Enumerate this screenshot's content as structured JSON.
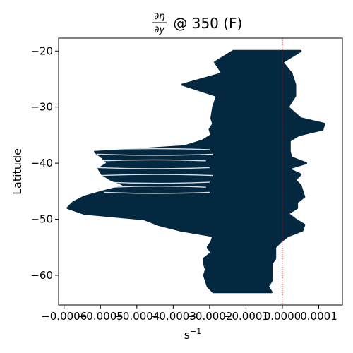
{
  "chart_data": {
    "type": "line",
    "title_prefix": "∂η",
    "title_denom": "∂y",
    "title_suffix": " @ 350 (F)",
    "xlabel_base": "s",
    "xlabel_exp": "−1",
    "ylabel": "Latitude",
    "xlim": [
      -0.000615,
      0.000165
    ],
    "ylim": [
      -65.3,
      -17.7
    ],
    "grid": false,
    "xticks": [
      {
        "value": -0.0006,
        "label": "−0.0006"
      },
      {
        "value": -0.0005,
        "label": "−0.0005"
      },
      {
        "value": -0.0004,
        "label": "−0.0004"
      },
      {
        "value": -0.0003,
        "label": "−0.0003"
      },
      {
        "value": -0.0002,
        "label": "−0.0002"
      },
      {
        "value": -0.0001,
        "label": "−0.0001"
      },
      {
        "value": 0.0,
        "label": "0.0000"
      },
      {
        "value": 0.0001,
        "label": "0.0001"
      }
    ],
    "yticks": [
      {
        "value": -20,
        "label": "−20"
      },
      {
        "value": -30,
        "label": "−30"
      },
      {
        "value": -40,
        "label": "−40"
      },
      {
        "value": -50,
        "label": "−50"
      },
      {
        "value": -60,
        "label": "−60"
      }
    ],
    "reference_line": {
      "x": 0.0,
      "color": "#cc0000",
      "style": "dotted"
    },
    "series_color": "#04283f",
    "envelope": {
      "lat": [
        -20,
        -22,
        -24,
        -26,
        -28,
        -30,
        -32,
        -33,
        -34,
        -35,
        -36,
        -37,
        -38,
        -39,
        -40,
        -41,
        -42,
        -43,
        -44,
        -45,
        -46,
        -47,
        -48,
        -49,
        -50,
        -51,
        -52,
        -53,
        -54,
        -55,
        -56,
        -57,
        -58,
        -59,
        -60,
        -61,
        -62,
        -63
      ],
      "min": [
        -0.000135,
        -0.000185,
        -0.000165,
        -0.000275,
        -0.00018,
        -0.00019,
        -0.000195,
        -0.00019,
        -0.0002,
        -0.000195,
        -0.00022,
        -0.00027,
        -0.000515,
        -0.000495,
        -0.00048,
        -0.000505,
        -0.000495,
        -0.00047,
        -0.00043,
        -0.00049,
        -0.000545,
        -0.000575,
        -0.00059,
        -0.000545,
        -0.00038,
        -0.00034,
        -0.00028,
        -0.00019,
        -0.000195,
        -0.000205,
        -0.000195,
        -0.000215,
        -0.000215,
        -0.00021,
        -0.000215,
        -0.00021,
        -0.000205,
        -0.00019
      ],
      "max": [
        5e-05,
        0.0,
        2.5e-05,
        3.5e-05,
        3.5e-05,
        1.5e-05,
        5e-05,
        0.000115,
        0.00011,
        4.5e-05,
        2e-05,
        2e-05,
        2e-05,
        2.5e-05,
        6.5e-05,
        1.5e-05,
        5e-05,
        3.5e-05,
        5e-05,
        5.5e-05,
        6e-05,
        4e-05,
        4e-05,
        1.5e-05,
        3.5e-05,
        6e-05,
        5.5e-05,
        1.5e-05,
        -5e-06,
        -2e-05,
        -2e-05,
        -2e-05,
        -3e-05,
        -3e-05,
        -3e-05,
        -3e-05,
        -4e-05,
        -3e-05
      ]
    },
    "tendrils": [
      {
        "lat": -37.6,
        "x_start": -0.00052,
        "x_end": -0.0002
      },
      {
        "lat": -38.4,
        "x_start": -0.00051,
        "x_end": -0.00019
      },
      {
        "lat": -39.6,
        "x_start": -0.0005,
        "x_end": -0.00021
      },
      {
        "lat": -40.8,
        "x_start": -0.00051,
        "x_end": -0.0002
      },
      {
        "lat": -42.2,
        "x_start": -0.0005,
        "x_end": -0.00019
      },
      {
        "lat": -43.4,
        "x_start": -0.00049,
        "x_end": -0.0002
      },
      {
        "lat": -44.3,
        "x_start": -0.00047,
        "x_end": -0.00021
      },
      {
        "lat": -45.2,
        "x_start": -0.00049,
        "x_end": -0.0002
      }
    ]
  }
}
